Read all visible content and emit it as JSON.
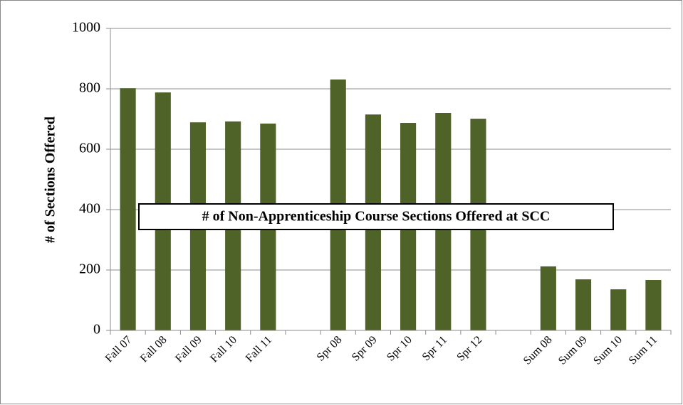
{
  "chart_data": {
    "type": "bar",
    "title": "# of Non-Apprenticeship Course Sections Offered at SCC",
    "y_label": "# of Sections Offered",
    "categories": [
      "Fall 07",
      "Fall 08",
      "Fall 09",
      "Fall 10",
      "Fall 11",
      null,
      "Spr 08",
      "Spr 09",
      "Spr 10",
      "Spr 11",
      "Spr 12",
      null,
      "Sum 08",
      "Sum 09",
      "Sum 10",
      "Sum 11"
    ],
    "values": [
      802,
      788,
      689,
      692,
      685,
      null,
      831,
      715,
      687,
      720,
      701,
      null,
      212,
      169,
      136,
      167
    ],
    "color": "#4f6228",
    "ylim": [
      0,
      1000
    ],
    "yticks": [
      0,
      200,
      400,
      600,
      800,
      1000
    ],
    "grid": true
  }
}
